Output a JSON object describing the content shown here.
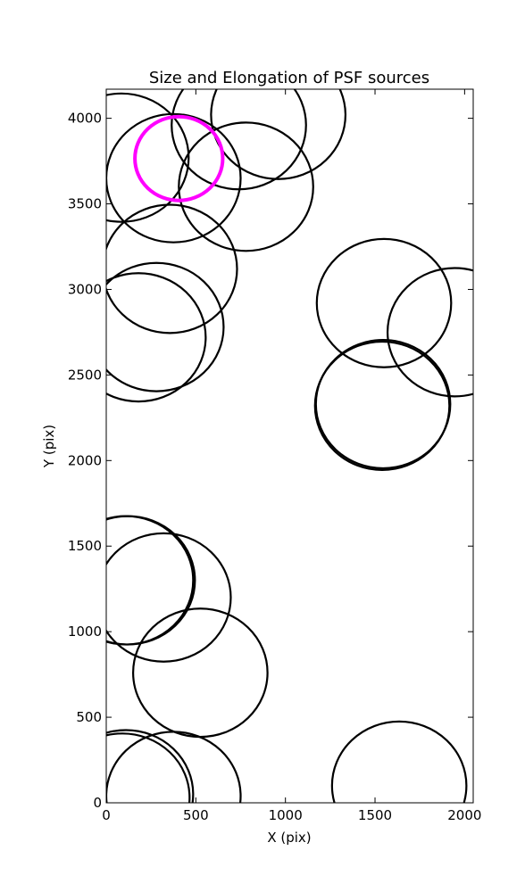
{
  "chart_data": {
    "type": "scatter",
    "title": "Size and Elongation of PSF sources",
    "xlabel": "X (pix)",
    "ylabel": "Y (pix)",
    "xlim": [
      0,
      2048
    ],
    "ylim": [
      0,
      4170
    ],
    "xticks": [
      0,
      500,
      1000,
      1500,
      2000
    ],
    "yticks": [
      0,
      500,
      1000,
      1500,
      2000,
      2500,
      3000,
      3500,
      4000
    ],
    "grid": false,
    "highlight_color": "#ff00ff",
    "circle_color": "#000000",
    "circles": [
      {
        "x": 85,
        "y": 3770,
        "r": 375
      },
      {
        "x": 740,
        "y": 3960,
        "r": 375
      },
      {
        "x": 960,
        "y": 4020,
        "r": 375
      },
      {
        "x": 375,
        "y": 3650,
        "r": 375
      },
      {
        "x": 780,
        "y": 3600,
        "r": 375
      },
      {
        "x": 355,
        "y": 3120,
        "r": 375
      },
      {
        "x": 280,
        "y": 2780,
        "r": 375
      },
      {
        "x": 180,
        "y": 2720,
        "r": 375
      },
      {
        "x": 1550,
        "y": 2920,
        "r": 375
      },
      {
        "x": 1945,
        "y": 2750,
        "r": 375
      },
      {
        "x": 1545,
        "y": 2330,
        "r": 375
      },
      {
        "x": 1540,
        "y": 2320,
        "r": 375
      },
      {
        "x": 110,
        "y": 1300,
        "r": 375
      },
      {
        "x": 120,
        "y": 1300,
        "r": 375
      },
      {
        "x": 320,
        "y": 1200,
        "r": 375
      },
      {
        "x": 525,
        "y": 760,
        "r": 375
      },
      {
        "x": 110,
        "y": 50,
        "r": 375
      },
      {
        "x": 90,
        "y": 30,
        "r": 375
      },
      {
        "x": 375,
        "y": 40,
        "r": 375
      },
      {
        "x": 1635,
        "y": 100,
        "r": 375
      }
    ],
    "highlighted": {
      "x": 405,
      "y": 3765,
      "r": 245
    }
  }
}
